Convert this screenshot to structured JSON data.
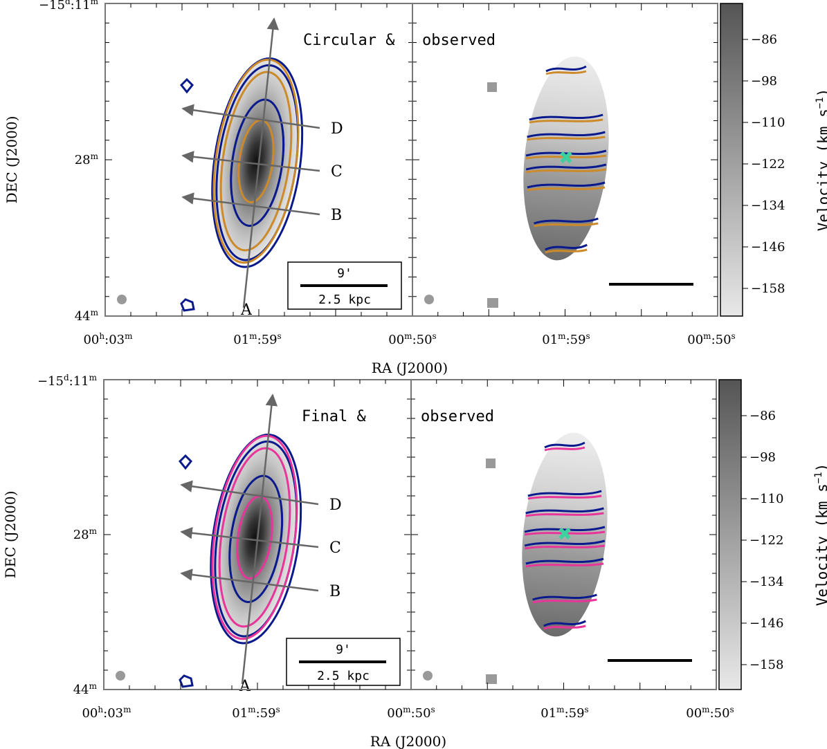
{
  "chart_data": [
    {
      "type": "heatmap",
      "panel": "top",
      "overlay_label": "Circular &",
      "model_name": "Circular",
      "model_contour_color": "#cc8a2a",
      "observed_label": "observed",
      "observed_contour_color": "#0a1a8c",
      "xlabel": "RA (J2000)",
      "ylabel": "DEC (J2000)",
      "xticks_left": [
        {
          "h": "00",
          "hu": "h",
          "m": "03",
          "mu": "m"
        },
        {
          "h": "01",
          "hu": "m",
          "m": "59",
          "mu": "s"
        },
        {
          "h": "00",
          "hu": "m",
          "m": "50",
          "mu": "s"
        }
      ],
      "xticks_right": [
        {
          "h": "01",
          "hu": "m",
          "m": "59",
          "mu": "s"
        },
        {
          "h": "00",
          "hu": "m",
          "m": "50",
          "mu": "s"
        }
      ],
      "yticks": [
        {
          "pre": "−15",
          "u1": "d",
          "mid": ":11",
          "u2": "m"
        },
        {
          "pre": "28",
          "u1": "",
          "mid": "",
          "u2": "m"
        },
        {
          "pre": "44",
          "u1": "",
          "mid": "",
          "u2": "m"
        }
      ],
      "slit_labels": [
        "A",
        "B",
        "C",
        "D"
      ],
      "scalebar": {
        "top": "9'",
        "bottom": "2.5 kpc"
      },
      "colorbar": {
        "label": "Velocity (km s",
        "label_sup": "−1",
        "label_end": ")",
        "ticks": [
          "−86",
          "−98",
          "−110",
          "−122",
          "−134",
          "−146",
          "−158"
        ]
      }
    },
    {
      "type": "heatmap",
      "panel": "bottom",
      "overlay_label": "Final &",
      "model_name": "Final",
      "model_contour_color": "#e8359a",
      "observed_label": "observed",
      "observed_contour_color": "#0a1a8c",
      "xlabel": "RA (J2000)",
      "ylabel": "DEC (J2000)",
      "xticks_left": [
        {
          "h": "00",
          "hu": "h",
          "m": "03",
          "mu": "m"
        },
        {
          "h": "01",
          "hu": "m",
          "m": "59",
          "mu": "s"
        },
        {
          "h": "00",
          "hu": "m",
          "m": "50",
          "mu": "s"
        }
      ],
      "xticks_right": [
        {
          "h": "01",
          "hu": "m",
          "m": "59",
          "mu": "s"
        },
        {
          "h": "00",
          "hu": "m",
          "m": "50",
          "mu": "s"
        }
      ],
      "yticks": [
        {
          "pre": "−15",
          "u1": "d",
          "mid": ":11",
          "u2": "m"
        },
        {
          "pre": "28",
          "u1": "",
          "mid": "",
          "u2": "m"
        },
        {
          "pre": "44",
          "u1": "",
          "mid": "",
          "u2": "m"
        }
      ],
      "slit_labels": [
        "A",
        "B",
        "C",
        "D"
      ],
      "scalebar": {
        "top": "9'",
        "bottom": "2.5 kpc"
      },
      "colorbar": {
        "label": "Velocity (km s",
        "label_sup": "−1",
        "label_end": ")",
        "ticks": [
          "−86",
          "−98",
          "−110",
          "−122",
          "−134",
          "−146",
          "−158"
        ]
      }
    }
  ]
}
